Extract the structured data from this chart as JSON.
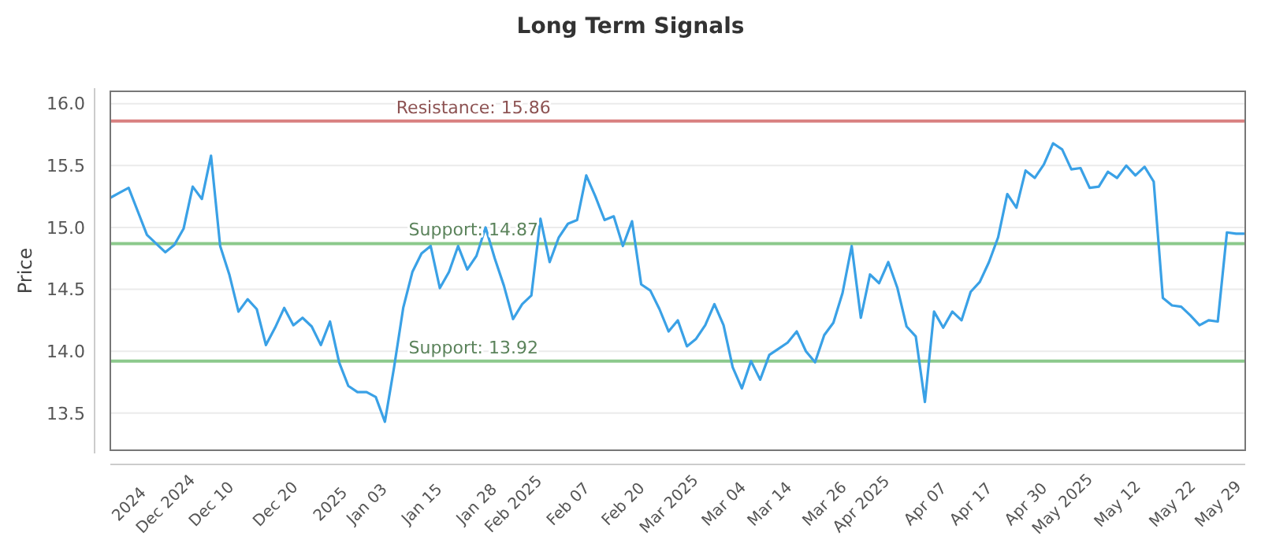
{
  "chart_data": {
    "type": "line",
    "title": "Long Term Signals",
    "ylabel": "Price",
    "categories": [
      null,
      null,
      "2024",
      null,
      null,
      null,
      "Dec 2024",
      null,
      null,
      null,
      null,
      "Dec 10",
      null,
      null,
      null,
      null,
      null,
      null,
      "Dec 20",
      null,
      null,
      null,
      null,
      null,
      "2025",
      null,
      null,
      null,
      "Jan 03",
      null,
      null,
      null,
      null,
      null,
      "Jan 15",
      null,
      null,
      null,
      null,
      null,
      "Jan 28",
      null,
      null,
      null,
      "Feb 2025",
      null,
      null,
      null,
      null,
      null,
      "Feb 07",
      null,
      null,
      null,
      null,
      null,
      "Feb 20",
      null,
      null,
      null,
      null,
      "Mar 2025",
      null,
      null,
      null,
      null,
      null,
      "Mar 04",
      null,
      null,
      null,
      null,
      "Mar 14",
      null,
      null,
      null,
      null,
      null,
      "Mar 26",
      null,
      null,
      null,
      "Apr 2025",
      null,
      null,
      null,
      null,
      null,
      null,
      "Apr 07",
      null,
      null,
      null,
      null,
      "Apr 17",
      null,
      null,
      null,
      null,
      null,
      "Apr 30",
      null,
      null,
      null,
      "May 2025",
      null,
      null,
      null,
      null,
      null,
      "May 12",
      null,
      null,
      null,
      null,
      null,
      "May 22",
      null,
      null,
      null,
      null,
      "May 29",
      null,
      null,
      null
    ],
    "series": [
      {
        "color": "#3aa1e6",
        "values": [
          15.24,
          15.28,
          15.32,
          15.13,
          14.94,
          14.87,
          14.8,
          14.86,
          14.99,
          15.33,
          15.23,
          15.58,
          14.85,
          14.62,
          14.32,
          14.42,
          14.34,
          14.05,
          14.19,
          14.35,
          14.21,
          14.27,
          14.2,
          14.05,
          14.24,
          13.91,
          13.72,
          13.67,
          13.67,
          13.63,
          13.43,
          13.87,
          14.35,
          14.64,
          14.79,
          14.85,
          14.51,
          14.64,
          14.85,
          14.66,
          14.77,
          15.0,
          14.75,
          14.53,
          14.26,
          14.38,
          14.45,
          15.07,
          14.72,
          14.92,
          15.03,
          15.06,
          15.42,
          15.25,
          15.06,
          15.09,
          14.85,
          15.05,
          14.54,
          14.49,
          14.34,
          14.16,
          14.25,
          14.04,
          14.1,
          14.21,
          14.38,
          14.21,
          13.87,
          13.7,
          13.92,
          13.77,
          13.97,
          14.02,
          14.07,
          14.16,
          14.0,
          13.91,
          14.13,
          14.23,
          14.47,
          14.85,
          14.27,
          14.62,
          14.55,
          14.72,
          14.51,
          14.2,
          14.12,
          13.59,
          14.32,
          14.19,
          14.32,
          14.25,
          14.48,
          14.56,
          14.72,
          14.92,
          15.27,
          15.16,
          15.46,
          15.4,
          15.51,
          15.68,
          15.63,
          15.47,
          15.48,
          15.32,
          15.33,
          15.45,
          15.4,
          15.5,
          15.42,
          15.49,
          15.37,
          14.43,
          14.37,
          14.36,
          14.29,
          14.21,
          14.25,
          14.24,
          14.96,
          14.95,
          14.95
        ]
      }
    ],
    "ylim": [
      13.2,
      16.1
    ],
    "yticks": [
      13.5,
      {
        "value": 14,
        "label": "14.0"
      },
      14.5,
      {
        "value": 15,
        "label": "15.0"
      },
      15.5,
      {
        "value": 16,
        "label": "16.0"
      }
    ],
    "grid": "y",
    "marker": "none",
    "line_style": "solid",
    "ref_lines": [
      {
        "axis": "y",
        "value": 15.86,
        "label": "Resistance: 15.86",
        "color": "#d98080"
      },
      {
        "axis": "y",
        "value": 14.87,
        "label": "Support: 14.87",
        "color": "#8cc98c"
      },
      {
        "axis": "y",
        "value": 13.92,
        "label": "Support: 13.92",
        "color": "#8cc98c"
      }
    ]
  }
}
